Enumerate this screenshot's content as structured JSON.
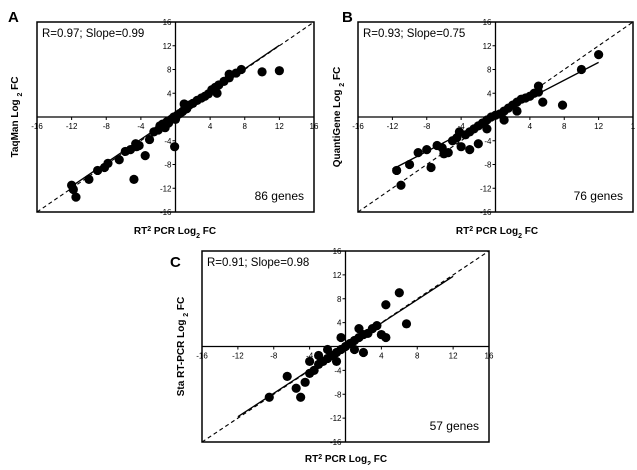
{
  "chart_data": [
    {
      "panel_label": "A",
      "type": "scatter",
      "annotation": "R=0.97; Slope=0.99",
      "count_label": "86 genes",
      "xlabel": {
        "base": "RT",
        "sup": "2",
        "mid": " PCR Log",
        "sub": "2",
        "tail": " FC"
      },
      "ylabel": {
        "base": "TaqMan Log ",
        "sub": "2",
        "tail": " FC"
      },
      "xlim": [
        -16,
        16
      ],
      "ylim": [
        -16,
        16
      ],
      "x_ticks": [
        "-16",
        "-12",
        "-8",
        "-4",
        "4",
        "8",
        "12",
        "16"
      ],
      "y_ticks": [
        "16",
        "12",
        "8",
        "4",
        "-4",
        "-8",
        "-12",
        "-16"
      ],
      "fit_line": {
        "slope": 0.99,
        "intercept": 0.2
      },
      "points": [
        [
          -12,
          -11.5
        ],
        [
          -11.5,
          -13.5
        ],
        [
          -11.8,
          -12.2
        ],
        [
          -10,
          -10.5
        ],
        [
          -9,
          -9
        ],
        [
          -8.2,
          -8.5
        ],
        [
          -7.8,
          -7.8
        ],
        [
          -6.5,
          -7.2
        ],
        [
          -5.8,
          -5.8
        ],
        [
          -5.2,
          -5.5
        ],
        [
          -4.8,
          -10.5
        ],
        [
          -4.5,
          -5
        ],
        [
          -4.2,
          -4.8
        ],
        [
          -3.5,
          -6.5
        ],
        [
          -3,
          -3.8
        ],
        [
          -2.5,
          -2.5
        ],
        [
          -2,
          -2.2
        ],
        [
          -1.8,
          -1.5
        ],
        [
          -1.5,
          -1.2
        ],
        [
          -1.2,
          -1.8
        ],
        [
          -1,
          -0.8
        ],
        [
          -0.8,
          -1
        ],
        [
          -0.6,
          -0.5
        ],
        [
          -0.4,
          -0.3
        ],
        [
          -0.2,
          0
        ],
        [
          0,
          -0.4
        ],
        [
          0.2,
          0.3
        ],
        [
          0.5,
          0.6
        ],
        [
          0.8,
          0.9
        ],
        [
          1,
          1.2
        ],
        [
          1.3,
          1.4
        ],
        [
          1.6,
          2
        ],
        [
          2,
          2.3
        ],
        [
          2.5,
          2.8
        ],
        [
          3,
          3.2
        ],
        [
          3.4,
          3.5
        ],
        [
          3.8,
          3.9
        ],
        [
          4.2,
          4.6
        ],
        [
          4.6,
          5
        ],
        [
          5,
          5.4
        ],
        [
          5.6,
          6
        ],
        [
          6.2,
          6.6
        ],
        [
          7,
          7.4
        ],
        [
          7.6,
          8
        ],
        [
          10,
          7.6
        ],
        [
          12,
          7.8
        ],
        [
          -0.1,
          -5
        ],
        [
          1,
          2.2
        ],
        [
          -4.6,
          -4.5
        ],
        [
          4.8,
          4
        ],
        [
          6.2,
          7.2
        ]
      ]
    },
    {
      "panel_label": "B",
      "type": "scatter",
      "annotation": "R=0.93; Slope=0.75",
      "count_label": "76 genes",
      "xlabel": {
        "base": "RT",
        "sup": "2",
        "mid": " PCR Log",
        "sub": "2",
        "tail": " FC"
      },
      "ylabel": {
        "base": "QuantiGene Log ",
        "sub": "2",
        "tail": " FC"
      },
      "xlim": [
        -16,
        16
      ],
      "ylim": [
        -16,
        16
      ],
      "x_ticks": [
        "-16",
        "-12",
        "-8",
        "-4",
        "4",
        "8",
        "12",
        "1"
      ],
      "y_ticks": [
        "16",
        "12",
        "8",
        "4",
        "-4",
        "-8",
        "-12",
        "-16"
      ],
      "fit_line": {
        "slope": 0.75,
        "intercept": 0.2
      },
      "points": [
        [
          -11.5,
          -9
        ],
        [
          -11,
          -11.5
        ],
        [
          -10,
          -8
        ],
        [
          -9,
          -6
        ],
        [
          -8,
          -5.5
        ],
        [
          -7.5,
          -8.5
        ],
        [
          -6.8,
          -4.8
        ],
        [
          -6.2,
          -5.2
        ],
        [
          -5.5,
          -6
        ],
        [
          -5,
          -4
        ],
        [
          -4.5,
          -3.5
        ],
        [
          -4,
          -5
        ],
        [
          -3.5,
          -3
        ],
        [
          -3,
          -2.5
        ],
        [
          -2.5,
          -2
        ],
        [
          -2,
          -1.5
        ],
        [
          -1.5,
          -1
        ],
        [
          -1,
          -0.5
        ],
        [
          -0.5,
          0
        ],
        [
          0,
          0.3
        ],
        [
          0.5,
          0.5
        ],
        [
          1,
          1
        ],
        [
          1.5,
          1.5
        ],
        [
          2,
          2
        ],
        [
          2.5,
          2.5
        ],
        [
          3,
          3
        ],
        [
          3.5,
          3.2
        ],
        [
          4,
          3.5
        ],
        [
          4.5,
          4
        ],
        [
          5,
          4.2
        ],
        [
          5.5,
          2.5
        ],
        [
          7.8,
          2
        ],
        [
          10,
          8
        ],
        [
          12,
          10.5
        ],
        [
          -2,
          -4.5
        ],
        [
          -3,
          -5.5
        ],
        [
          -1,
          -2
        ],
        [
          1,
          -0.5
        ],
        [
          2.5,
          1
        ],
        [
          -6,
          -6.2
        ],
        [
          -4.2,
          -2.5
        ],
        [
          5,
          5.2
        ]
      ]
    },
    {
      "panel_label": "C",
      "type": "scatter",
      "annotation": "R=0.91; Slope=0.98",
      "count_label": "57 genes",
      "xlabel": {
        "base": "RT",
        "sup": "2",
        "mid": " PCR Log",
        "sub": "2",
        "tail": " FC"
      },
      "ylabel": {
        "base": "Sta RT-PCR Log ",
        "sub": "2",
        "tail": " FC"
      },
      "xlim": [
        -16,
        16
      ],
      "ylim": [
        -16,
        16
      ],
      "x_ticks": [
        "-16",
        "-12",
        "-8",
        "-4",
        "4",
        "8",
        "12",
        "16"
      ],
      "y_ticks": [
        "16",
        "12",
        "8",
        "4",
        "-4",
        "-8",
        "-12",
        "-16"
      ],
      "fit_line": {
        "slope": 0.98,
        "intercept": 0
      },
      "points": [
        [
          -8.5,
          -8.5
        ],
        [
          -6.5,
          -5
        ],
        [
          -5.5,
          -7
        ],
        [
          -5,
          -8.5
        ],
        [
          -4.5,
          -6
        ],
        [
          -4,
          -4.5
        ],
        [
          -3.5,
          -4
        ],
        [
          -3,
          -3
        ],
        [
          -2.5,
          -2.5
        ],
        [
          -2,
          -2
        ],
        [
          -1.5,
          -1.5
        ],
        [
          -1,
          -1
        ],
        [
          -0.5,
          -0.5
        ],
        [
          0,
          0
        ],
        [
          0.5,
          0.5
        ],
        [
          1,
          1
        ],
        [
          1.5,
          1.5
        ],
        [
          2,
          2
        ],
        [
          2.5,
          2.2
        ],
        [
          3,
          3
        ],
        [
          3.5,
          3.5
        ],
        [
          4,
          2
        ],
        [
          4.5,
          1.5
        ],
        [
          4.5,
          7
        ],
        [
          6,
          9
        ],
        [
          6.8,
          3.8
        ],
        [
          -2,
          -0.5
        ],
        [
          -1,
          -2.5
        ],
        [
          1,
          -0.5
        ],
        [
          2,
          -1
        ],
        [
          -3,
          -1.5
        ],
        [
          -0.5,
          1.5
        ],
        [
          1.5,
          3
        ],
        [
          -4,
          -2.5
        ]
      ]
    }
  ]
}
